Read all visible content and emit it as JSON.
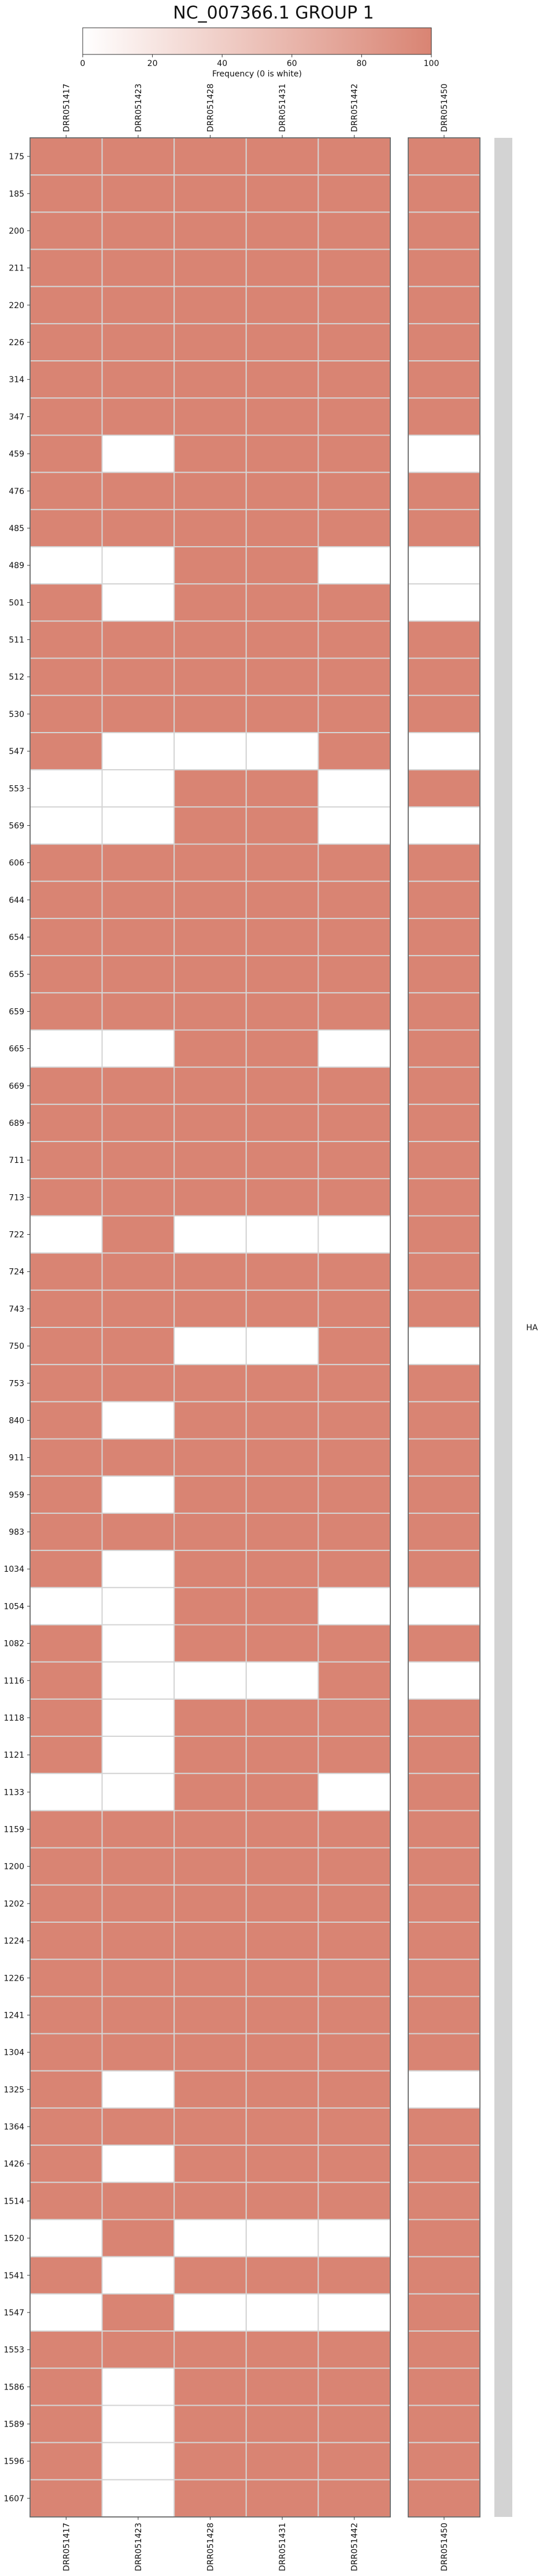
{
  "chart_data": {
    "type": "heatmap",
    "title": "NC_007366.1 GROUP 1",
    "colorbar": {
      "label": "Frequency (0 is white)",
      "min": 0,
      "max": 100,
      "ticks": [
        0,
        20,
        40,
        60,
        80,
        100
      ],
      "color_low": "#ffffff",
      "color_high": "#d98473"
    },
    "main_columns": [
      "DRR051417",
      "DRR051423",
      "DRR051428",
      "DRR051431",
      "DRR051442"
    ],
    "side_columns": [
      "DRR051450"
    ],
    "rows": [
      "175",
      "185",
      "200",
      "211",
      "220",
      "226",
      "314",
      "347",
      "459",
      "476",
      "485",
      "489",
      "501",
      "511",
      "512",
      "530",
      "547",
      "553",
      "569",
      "606",
      "644",
      "654",
      "655",
      "659",
      "665",
      "669",
      "689",
      "711",
      "713",
      "722",
      "724",
      "743",
      "750",
      "753",
      "840",
      "911",
      "959",
      "983",
      "1034",
      "1054",
      "1082",
      "1116",
      "1118",
      "1121",
      "1133",
      "1159",
      "1200",
      "1202",
      "1224",
      "1226",
      "1241",
      "1304",
      "1325",
      "1364",
      "1426",
      "1514",
      "1520",
      "1541",
      "1547",
      "1553",
      "1586",
      "1589",
      "1596",
      "1607"
    ],
    "main_values": [
      [
        100,
        100,
        100,
        100,
        100
      ],
      [
        100,
        100,
        100,
        100,
        100
      ],
      [
        100,
        100,
        100,
        100,
        100
      ],
      [
        100,
        100,
        100,
        100,
        100
      ],
      [
        100,
        100,
        100,
        100,
        100
      ],
      [
        100,
        100,
        100,
        100,
        100
      ],
      [
        100,
        100,
        100,
        100,
        100
      ],
      [
        100,
        100,
        100,
        100,
        100
      ],
      [
        100,
        0,
        100,
        100,
        100
      ],
      [
        100,
        100,
        100,
        100,
        100
      ],
      [
        100,
        100,
        100,
        100,
        100
      ],
      [
        0,
        0,
        100,
        100,
        0
      ],
      [
        100,
        0,
        100,
        100,
        100
      ],
      [
        100,
        100,
        100,
        100,
        100
      ],
      [
        100,
        100,
        100,
        100,
        100
      ],
      [
        100,
        100,
        100,
        100,
        100
      ],
      [
        100,
        0,
        0,
        0,
        100
      ],
      [
        0,
        0,
        100,
        100,
        0
      ],
      [
        0,
        0,
        100,
        100,
        0
      ],
      [
        100,
        100,
        100,
        100,
        100
      ],
      [
        100,
        100,
        100,
        100,
        100
      ],
      [
        100,
        100,
        100,
        100,
        100
      ],
      [
        100,
        100,
        100,
        100,
        100
      ],
      [
        100,
        100,
        100,
        100,
        100
      ],
      [
        0,
        0,
        100,
        100,
        0
      ],
      [
        100,
        100,
        100,
        100,
        100
      ],
      [
        100,
        100,
        100,
        100,
        100
      ],
      [
        100,
        100,
        100,
        100,
        100
      ],
      [
        100,
        100,
        100,
        100,
        100
      ],
      [
        0,
        100,
        0,
        0,
        0
      ],
      [
        100,
        100,
        100,
        100,
        100
      ],
      [
        100,
        100,
        100,
        100,
        100
      ],
      [
        100,
        100,
        0,
        0,
        100
      ],
      [
        100,
        100,
        100,
        100,
        100
      ],
      [
        100,
        0,
        100,
        100,
        100
      ],
      [
        100,
        100,
        100,
        100,
        100
      ],
      [
        100,
        0,
        100,
        100,
        100
      ],
      [
        100,
        100,
        100,
        100,
        100
      ],
      [
        100,
        0,
        100,
        100,
        100
      ],
      [
        0,
        0,
        100,
        100,
        0
      ],
      [
        100,
        0,
        100,
        100,
        100
      ],
      [
        100,
        0,
        0,
        0,
        100
      ],
      [
        100,
        0,
        100,
        100,
        100
      ],
      [
        100,
        0,
        100,
        100,
        100
      ],
      [
        0,
        0,
        100,
        100,
        0
      ],
      [
        100,
        100,
        100,
        100,
        100
      ],
      [
        100,
        100,
        100,
        100,
        100
      ],
      [
        100,
        100,
        100,
        100,
        100
      ],
      [
        100,
        100,
        100,
        100,
        100
      ],
      [
        100,
        100,
        100,
        100,
        100
      ],
      [
        100,
        100,
        100,
        100,
        100
      ],
      [
        100,
        100,
        100,
        100,
        100
      ],
      [
        100,
        0,
        100,
        100,
        100
      ],
      [
        100,
        100,
        100,
        100,
        100
      ],
      [
        100,
        0,
        100,
        100,
        100
      ],
      [
        100,
        100,
        100,
        100,
        100
      ],
      [
        0,
        100,
        0,
        0,
        0
      ],
      [
        100,
        0,
        100,
        100,
        100
      ],
      [
        0,
        100,
        0,
        0,
        0
      ],
      [
        100,
        100,
        100,
        100,
        100
      ],
      [
        100,
        0,
        100,
        100,
        100
      ],
      [
        100,
        0,
        100,
        100,
        100
      ],
      [
        100,
        0,
        100,
        100,
        100
      ],
      [
        100,
        0,
        100,
        100,
        100
      ]
    ],
    "side_values": [
      [
        100
      ],
      [
        100
      ],
      [
        100
      ],
      [
        100
      ],
      [
        100
      ],
      [
        100
      ],
      [
        100
      ],
      [
        100
      ],
      [
        0
      ],
      [
        100
      ],
      [
        100
      ],
      [
        0
      ],
      [
        0
      ],
      [
        100
      ],
      [
        100
      ],
      [
        100
      ],
      [
        0
      ],
      [
        100
      ],
      [
        0
      ],
      [
        100
      ],
      [
        100
      ],
      [
        100
      ],
      [
        100
      ],
      [
        100
      ],
      [
        100
      ],
      [
        100
      ],
      [
        100
      ],
      [
        100
      ],
      [
        100
      ],
      [
        100
      ],
      [
        100
      ],
      [
        100
      ],
      [
        0
      ],
      [
        100
      ],
      [
        100
      ],
      [
        100
      ],
      [
        100
      ],
      [
        100
      ],
      [
        100
      ],
      [
        0
      ],
      [
        100
      ],
      [
        0
      ],
      [
        100
      ],
      [
        100
      ],
      [
        100
      ],
      [
        100
      ],
      [
        100
      ],
      [
        100
      ],
      [
        100
      ],
      [
        100
      ],
      [
        100
      ],
      [
        100
      ],
      [
        0
      ],
      [
        100
      ],
      [
        100
      ],
      [
        100
      ],
      [
        100
      ],
      [
        100
      ],
      [
        100
      ],
      [
        100
      ],
      [
        100
      ],
      [
        100
      ],
      [
        100
      ],
      [
        100
      ]
    ],
    "annotation_bar": {
      "label": "HA",
      "color": "#d3d3d3"
    }
  }
}
